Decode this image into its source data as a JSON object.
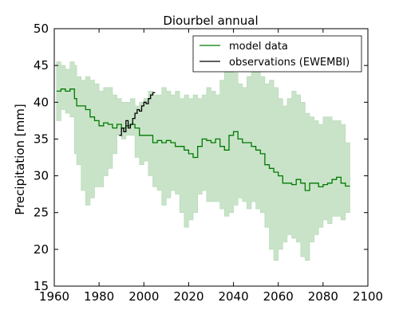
{
  "colors": {
    "model_line": "#007a00",
    "model_band": "#c8e3c8",
    "obs_line": "#000000",
    "frame": "#000000"
  },
  "chart_data": {
    "type": "line",
    "title": "Diourbel annual",
    "xlabel": "",
    "ylabel": "Precipitation [mm]",
    "xlim": [
      1960,
      2100
    ],
    "ylim": [
      15,
      50
    ],
    "xticks": [
      1960,
      1980,
      2000,
      2020,
      2040,
      2060,
      2080,
      2100
    ],
    "yticks": [
      15,
      20,
      25,
      30,
      35,
      40,
      45,
      50
    ],
    "grid": false,
    "legend": {
      "placement": "top-right",
      "entries": [
        "model data",
        "observations (EWEMBI)"
      ]
    },
    "series": [
      {
        "name": "model data",
        "style": "step-line with shaded ensemble range",
        "x": [
          1961,
          1963,
          1965,
          1967,
          1969,
          1970,
          1972,
          1974,
          1976,
          1978,
          1980,
          1982,
          1984,
          1986,
          1988,
          1990,
          1992,
          1994,
          1996,
          1998,
          2000,
          2002,
          2004,
          2006,
          2008,
          2010,
          2012,
          2014,
          2016,
          2018,
          2020,
          2022,
          2024,
          2026,
          2028,
          2030,
          2032,
          2034,
          2036,
          2038,
          2040,
          2042,
          2044,
          2046,
          2048,
          2050,
          2052,
          2054,
          2056,
          2058,
          2060,
          2062,
          2064,
          2066,
          2068,
          2070,
          2072,
          2074,
          2076,
          2078,
          2080,
          2082,
          2084,
          2086,
          2088,
          2090
        ],
        "values": [
          41.5,
          41.8,
          41.5,
          41.8,
          40.5,
          39.5,
          39.5,
          39.0,
          38.0,
          37.5,
          36.8,
          37.2,
          37.0,
          36.5,
          37.0,
          36.5,
          36.8,
          37.0,
          36.5,
          35.5,
          35.5,
          35.5,
          34.5,
          34.8,
          34.5,
          34.8,
          34.5,
          34.0,
          34.0,
          33.5,
          33.0,
          32.5,
          34.0,
          35.0,
          34.8,
          34.5,
          35.0,
          34.0,
          33.5,
          35.5,
          36.0,
          35.0,
          34.5,
          34.5,
          34.0,
          33.5,
          33.0,
          31.5,
          31.0,
          30.5,
          30.0,
          29.0,
          29.0,
          28.8,
          29.5,
          29.0,
          28.0,
          29.0,
          29.0,
          28.5,
          28.8,
          29.0,
          29.5,
          29.8,
          29.0,
          28.6
        ],
        "upper": [
          45.5,
          45.0,
          44.5,
          45.5,
          45.0,
          43.5,
          43.0,
          43.5,
          43.0,
          42.5,
          41.5,
          42.0,
          42.0,
          41.0,
          40.5,
          40.0,
          40.0,
          40.5,
          39.5,
          40.0,
          40.5,
          41.5,
          41.0,
          41.0,
          42.0,
          41.5,
          41.0,
          41.5,
          40.5,
          41.0,
          40.5,
          41.0,
          40.5,
          41.0,
          42.0,
          41.5,
          41.0,
          43.0,
          46.5,
          47.5,
          44.0,
          42.5,
          42.0,
          43.5,
          44.5,
          44.5,
          43.5,
          42.5,
          43.0,
          42.0,
          40.5,
          39.5,
          40.5,
          41.5,
          41.0,
          40.0,
          38.5,
          38.0,
          37.5,
          37.0,
          38.0,
          38.0,
          37.5,
          37.5,
          37.0,
          34.5
        ],
        "lower": [
          37.5,
          39.0,
          38.5,
          38.0,
          33.0,
          31.5,
          28.0,
          26.0,
          27.0,
          28.5,
          28.5,
          30.0,
          31.0,
          33.0,
          35.5,
          35.0,
          35.5,
          35.5,
          32.5,
          31.5,
          32.0,
          30.0,
          28.5,
          28.0,
          26.0,
          27.0,
          28.0,
          27.5,
          25.0,
          23.0,
          24.0,
          25.0,
          27.5,
          28.0,
          26.5,
          26.5,
          26.5,
          25.5,
          24.5,
          25.0,
          26.0,
          27.0,
          26.5,
          25.5,
          26.5,
          25.5,
          25.0,
          23.0,
          20.0,
          18.5,
          20.0,
          21.0,
          22.0,
          21.5,
          21.0,
          19.0,
          18.5,
          21.0,
          22.0,
          23.0,
          24.0,
          23.5,
          24.5,
          24.5,
          24.0,
          25.0
        ]
      },
      {
        "name": "observations (EWEMBI)",
        "style": "step-line",
        "x": [
          1989,
          1990,
          1991,
          1992,
          1993,
          1994,
          1995,
          1996,
          1997,
          1998,
          1999,
          2000,
          2001,
          2002,
          2003,
          2004
        ],
        "values": [
          35.5,
          36.5,
          36.0,
          37.5,
          36.5,
          37.0,
          37.8,
          38.5,
          39.0,
          38.8,
          39.5,
          40.0,
          39.8,
          40.5,
          41.0,
          41.3
        ]
      }
    ]
  }
}
